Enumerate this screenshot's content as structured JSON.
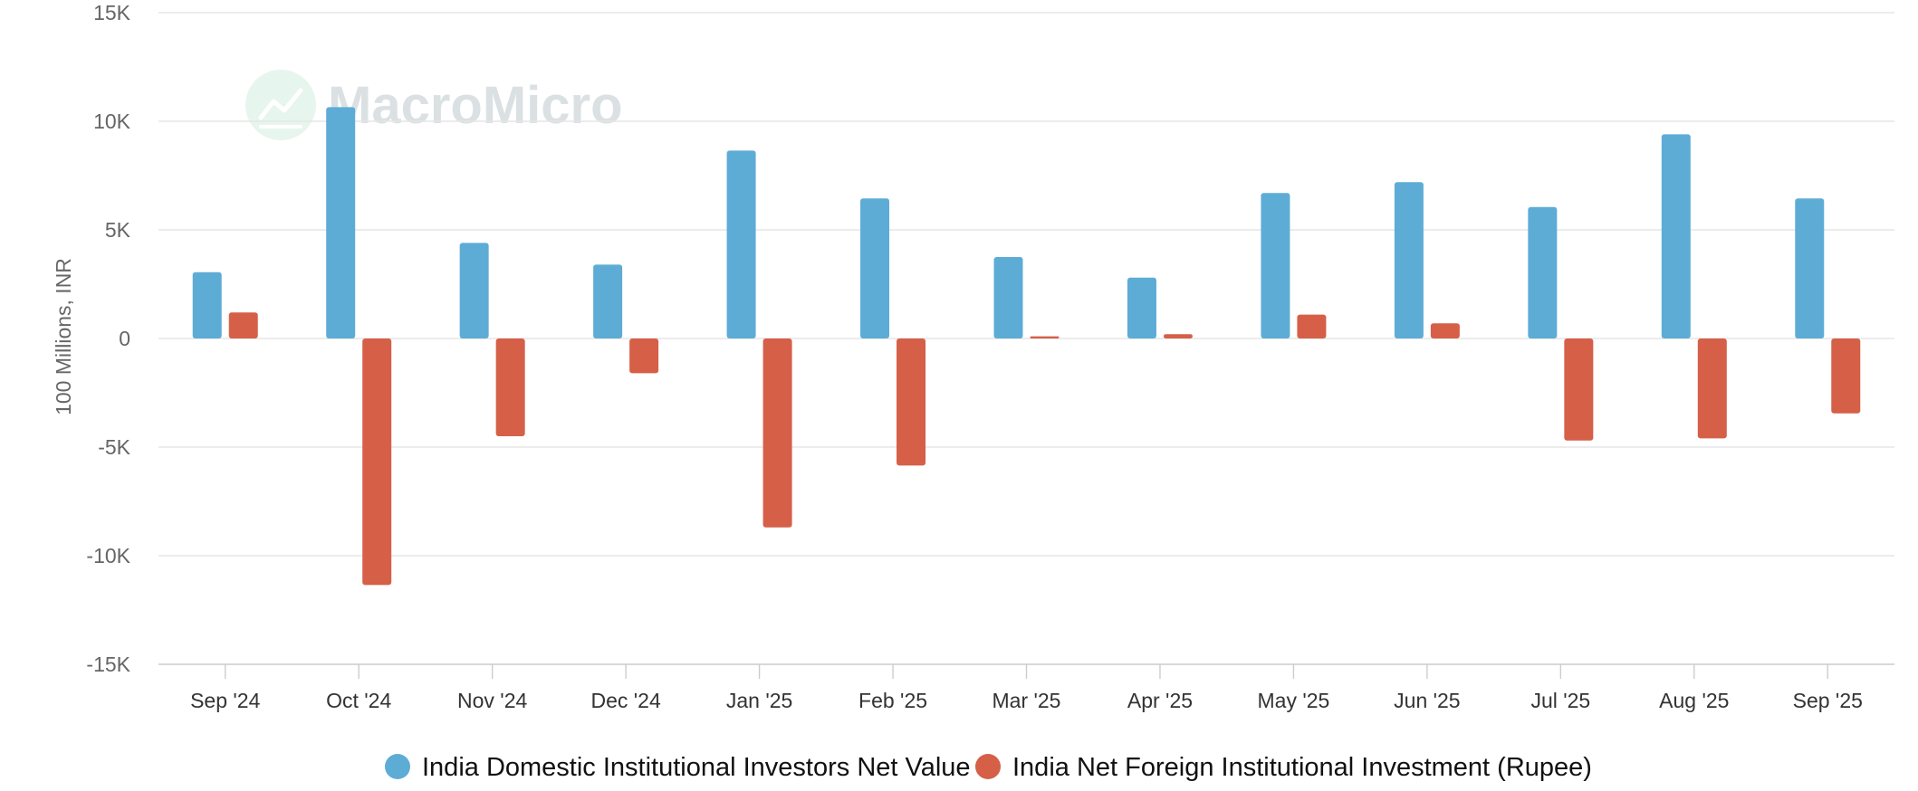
{
  "chart_data": {
    "type": "bar",
    "title": "",
    "xlabel": "",
    "ylabel": "100 Millions, INR",
    "ylim": [
      -15000,
      15000
    ],
    "yticks": [
      15000,
      10000,
      5000,
      0,
      -5000,
      -10000,
      -15000
    ],
    "ytick_labels": [
      "15K",
      "10K",
      "5K",
      "0",
      "-5K",
      "-10K",
      "-15K"
    ],
    "grid": true,
    "legend_position": "bottom-center",
    "categories": [
      "Sep '24",
      "Oct '24",
      "Nov '24",
      "Dec '24",
      "Jan '25",
      "Feb '25",
      "Mar '25",
      "Apr '25",
      "May '25",
      "Jun '25",
      "Jul '25",
      "Aug '25",
      "Sep '25"
    ],
    "series": [
      {
        "name": "India Domestic Institutional Investors Net Value",
        "color": "#5dacd6",
        "values": [
          3050,
          10650,
          4400,
          3400,
          8650,
          6450,
          3750,
          2800,
          6700,
          7200,
          6050,
          9400,
          6450
        ]
      },
      {
        "name": "India Net Foreign Institutional Investment (Rupee)",
        "color": "#d65f48",
        "values": [
          1200,
          -11350,
          -4500,
          -1600,
          -8700,
          -5850,
          100,
          200,
          1100,
          700,
          -4700,
          -4600,
          -3450
        ]
      }
    ]
  },
  "watermark": {
    "text": "MacroMicro",
    "icon": "macromicro-logo-icon"
  }
}
